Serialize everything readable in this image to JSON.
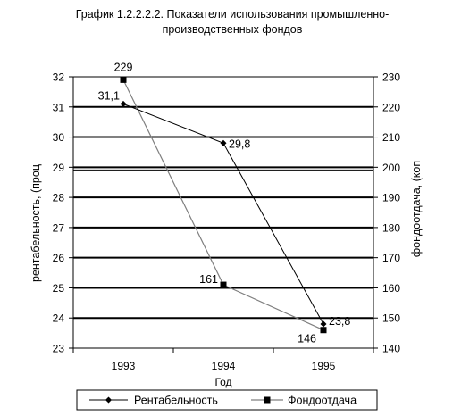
{
  "title_line1": "График 1.2.2.2.2.  Показатели использования промышленно-",
  "title_line2": "производственных фондов",
  "chart_data": {
    "type": "line",
    "categories": [
      "1993",
      "1994",
      "1995"
    ],
    "xlabel": "Год",
    "ylabel_left": "рентабельность, (проц",
    "ylabel_right": "фондоотдача, (коп",
    "ylim_left": [
      23,
      32
    ],
    "ylim_right": [
      140,
      230
    ],
    "yticks_left": [
      23,
      24,
      25,
      26,
      27,
      28,
      29,
      30,
      31,
      32
    ],
    "yticks_right": [
      140,
      150,
      160,
      170,
      180,
      190,
      200,
      210,
      220,
      230
    ],
    "grid": true,
    "legend_position": "bottom",
    "series": [
      {
        "name": "Рентабельность",
        "axis": "left",
        "marker": "diamond",
        "color": "#000000",
        "values": [
          31.1,
          29.8,
          23.8
        ],
        "labels": [
          "31,1",
          "29,8",
          "23,8"
        ]
      },
      {
        "name": "Фондоотдача",
        "axis": "right",
        "marker": "square",
        "color": "#7f7f7f",
        "values": [
          229,
          161,
          146
        ],
        "labels": [
          "229",
          "161",
          "146"
        ]
      }
    ]
  }
}
